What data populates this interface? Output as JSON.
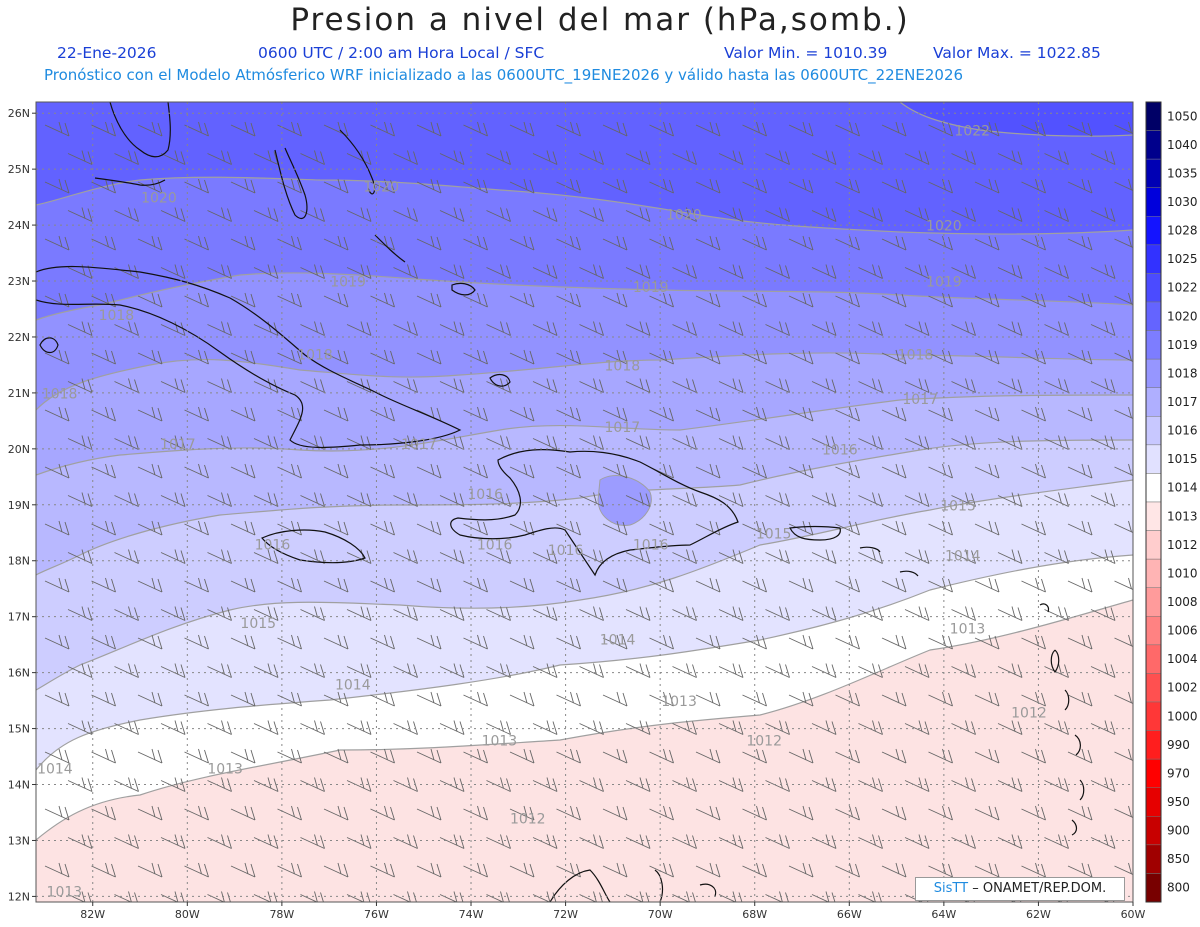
{
  "title": "Presion a nivel del mar (hPa,somb.)",
  "header": {
    "date": "22-Ene-2026",
    "time": "0600 UTC / 2:00 am Hora Local / SFC",
    "min": "Valor Min. = 1010.39",
    "max": "Valor Max. = 1022.85",
    "forecast": "Pronóstico con el Modelo Atmósferico WRF inicializado a las 0600UTC_19ENE2026 y válido hasta las  0600UTC_22ENE2026"
  },
  "credit": {
    "logo": "SisTT",
    "text": "– ONAMET/REP.DOM."
  },
  "map": {
    "lat_labels": [
      "26N",
      "25N",
      "24N",
      "23N",
      "22N",
      "21N",
      "20N",
      "19N",
      "18N",
      "17N",
      "16N",
      "15N",
      "14N",
      "13N",
      "12N"
    ],
    "lon_labels": [
      "82W",
      "80W",
      "78W",
      "76W",
      "74W",
      "72W",
      "70W",
      "68W",
      "66W",
      "64W",
      "62W",
      "60W"
    ],
    "contour_labels": [
      {
        "v": "1022",
        "lon": -63.4,
        "lat": 25.6
      },
      {
        "v": "1020",
        "lon": -80.6,
        "lat": 24.4
      },
      {
        "v": "1020",
        "lon": -75.9,
        "lat": 24.6
      },
      {
        "v": "1020",
        "lon": -69.5,
        "lat": 24.1
      },
      {
        "v": "1020",
        "lon": -64.0,
        "lat": 23.9
      },
      {
        "v": "1019",
        "lon": -76.6,
        "lat": 22.9
      },
      {
        "v": "1019",
        "lon": -70.2,
        "lat": 22.8
      },
      {
        "v": "1019",
        "lon": -64.0,
        "lat": 22.9
      },
      {
        "v": "1018",
        "lon": -81.5,
        "lat": 22.3
      },
      {
        "v": "1018",
        "lon": -82.7,
        "lat": 20.9
      },
      {
        "v": "1018",
        "lon": -77.3,
        "lat": 21.6
      },
      {
        "v": "1018",
        "lon": -70.8,
        "lat": 21.4
      },
      {
        "v": "1018",
        "lon": -64.6,
        "lat": 21.6
      },
      {
        "v": "1017",
        "lon": -80.2,
        "lat": 20.0
      },
      {
        "v": "1017",
        "lon": -75.1,
        "lat": 20.0
      },
      {
        "v": "1017",
        "lon": -70.8,
        "lat": 20.3
      },
      {
        "v": "1017",
        "lon": -64.5,
        "lat": 20.8
      },
      {
        "v": "1016",
        "lon": -73.7,
        "lat": 19.1
      },
      {
        "v": "1016",
        "lon": -66.2,
        "lat": 19.9
      },
      {
        "v": "1016",
        "lon": -78.2,
        "lat": 18.2
      },
      {
        "v": "1016",
        "lon": -73.5,
        "lat": 18.2
      },
      {
        "v": "1016",
        "lon": -72.0,
        "lat": 18.1
      },
      {
        "v": "1016",
        "lon": -70.2,
        "lat": 18.2
      },
      {
        "v": "1015",
        "lon": -78.5,
        "lat": 16.8
      },
      {
        "v": "1015",
        "lon": -67.6,
        "lat": 18.4
      },
      {
        "v": "1015",
        "lon": -63.7,
        "lat": 18.9
      },
      {
        "v": "1014",
        "lon": -70.9,
        "lat": 16.5
      },
      {
        "v": "1014",
        "lon": -76.5,
        "lat": 15.7
      },
      {
        "v": "1014",
        "lon": -63.6,
        "lat": 18.0
      },
      {
        "v": "1014",
        "lon": -82.8,
        "lat": 14.2
      },
      {
        "v": "1013",
        "lon": -63.5,
        "lat": 16.7
      },
      {
        "v": "1013",
        "lon": -69.6,
        "lat": 15.4
      },
      {
        "v": "1013",
        "lon": -73.4,
        "lat": 14.7
      },
      {
        "v": "1013",
        "lon": -79.2,
        "lat": 14.2
      },
      {
        "v": "1013",
        "lon": -82.6,
        "lat": 12.0
      },
      {
        "v": "1012",
        "lon": -67.8,
        "lat": 14.7
      },
      {
        "v": "1012",
        "lon": -62.2,
        "lat": 15.2
      },
      {
        "v": "1012",
        "lon": -72.8,
        "lat": 13.3
      }
    ]
  },
  "colorbar": {
    "levels": [
      "1050",
      "1040",
      "1035",
      "1030",
      "1028",
      "1025",
      "1022",
      "1020",
      "1019",
      "1018",
      "1017",
      "1016",
      "1015",
      "1014",
      "1013",
      "1012",
      "1010",
      "1008",
      "1006",
      "1004",
      "1002",
      "1000",
      "990",
      "970",
      "950",
      "900",
      "850",
      "800"
    ],
    "colors": [
      "#000066",
      "#00008c",
      "#0000b4",
      "#0000dc",
      "#1414ff",
      "#3232ff",
      "#4b4bff",
      "#6464ff",
      "#7d7dff",
      "#9696ff",
      "#afafff",
      "#c8c8ff",
      "#e1e1ff",
      "#ffffff",
      "#ffe6e6",
      "#ffcdcd",
      "#ffb4b4",
      "#ff9b9b",
      "#ff8282",
      "#ff6969",
      "#ff5050",
      "#ff3737",
      "#ff1e1e",
      "#ff0000",
      "#e60000",
      "#c80000",
      "#a00000",
      "#780000"
    ]
  }
}
